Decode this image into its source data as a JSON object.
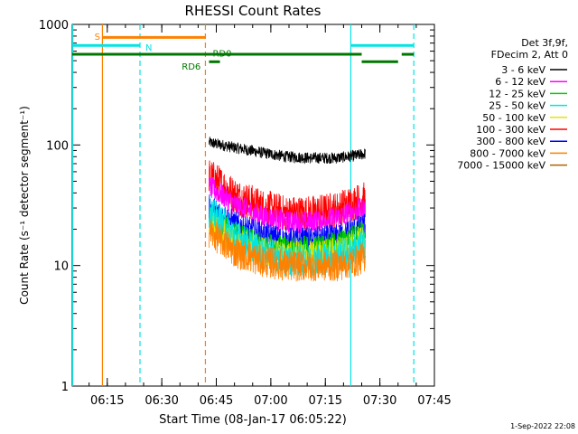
{
  "chart_data": {
    "type": "line",
    "title": "RHESSI Count Rates",
    "xlabel": "Start Time (08-Jan-17 06:05:22)",
    "ylabel": "Count Rate (s⁻¹ detector segment⁻¹)",
    "y_scale": "log",
    "ylim": [
      1,
      1000
    ],
    "xlim": [
      "06:05:22",
      "07:45:00"
    ],
    "x_ticks": [
      "06:15",
      "06:30",
      "06:45",
      "07:00",
      "07:15",
      "07:30",
      "07:45"
    ],
    "y_ticks": [
      "1",
      "10",
      "100",
      "1000"
    ],
    "legend_title": [
      "Det 3f,9f,",
      "FDecim 2, Att 0"
    ],
    "legend_position": "right",
    "data_interval": [
      "06:43:00",
      "07:26:00"
    ],
    "series": [
      {
        "name": "3 - 6 keV",
        "color": "#000000",
        "x": [
          "06:43",
          "06:50",
          "06:57",
          "07:04",
          "07:11",
          "07:18",
          "07:24",
          "07:26"
        ],
        "values": [
          105,
          95,
          87,
          80,
          78,
          78,
          82,
          85
        ]
      },
      {
        "name": "6 - 12 keV",
        "color": "#ff00ff",
        "x": [
          "06:43",
          "06:50",
          "06:57",
          "07:04",
          "07:11",
          "07:18",
          "07:24",
          "07:26"
        ],
        "values": [
          45,
          32,
          26,
          23,
          23,
          25,
          29,
          30
        ]
      },
      {
        "name": "12 - 25 keV",
        "color": "#00cc00",
        "x": [
          "06:43",
          "06:50",
          "06:57",
          "07:04",
          "07:11",
          "07:18",
          "07:24",
          "07:26"
        ],
        "values": [
          25,
          18,
          15,
          14,
          14,
          15,
          18,
          19
        ]
      },
      {
        "name": "25 - 50 keV",
        "color": "#00e5e5",
        "x": [
          "06:43",
          "06:50",
          "06:57",
          "07:04",
          "07:11",
          "07:18",
          "07:24",
          "07:26"
        ],
        "values": [
          28,
          18,
          13,
          11,
          11,
          12,
          14,
          15
        ]
      },
      {
        "name": "50 - 100 keV",
        "color": "#e5e500",
        "x": [
          "06:43",
          "06:50",
          "06:57",
          "07:04",
          "07:11",
          "07:18",
          "07:24",
          "07:26"
        ],
        "values": [
          22,
          16,
          13,
          12,
          12,
          13,
          16,
          17
        ]
      },
      {
        "name": "100 - 300 keV",
        "color": "#ff0000",
        "x": [
          "06:43",
          "06:50",
          "06:57",
          "07:04",
          "07:11",
          "07:18",
          "07:24",
          "07:26"
        ],
        "values": [
          55,
          38,
          31,
          27,
          27,
          29,
          34,
          35
        ]
      },
      {
        "name": "300 - 800 keV",
        "color": "#0000ff",
        "x": [
          "06:43",
          "06:50",
          "06:57",
          "07:04",
          "07:11",
          "07:18",
          "07:24",
          "07:26"
        ],
        "values": [
          30,
          22,
          18,
          16,
          16,
          17,
          20,
          21
        ]
      },
      {
        "name": "800 - 7000 keV",
        "color": "#ff8000",
        "x": [
          "06:43",
          "06:50",
          "06:57",
          "07:04",
          "07:11",
          "07:18",
          "07:24",
          "07:26"
        ],
        "values": [
          19,
          13,
          11,
          10,
          10,
          10,
          11,
          12
        ]
      },
      {
        "name": "7000 - 15000 keV",
        "color": "#b06000",
        "x": [],
        "values": []
      }
    ],
    "vertical_lines": [
      {
        "time": "06:05:30",
        "color": "#00e5e5",
        "style": "solid"
      },
      {
        "time": "06:13:40",
        "color": "#ff8000",
        "style": "solid"
      },
      {
        "time": "06:24:00",
        "color": "#00e5e5",
        "style": "dashed"
      },
      {
        "time": "06:42:00",
        "color": "#ff8000",
        "style": "dashed"
      },
      {
        "time": "07:22:00",
        "color": "#00e5e5",
        "style": "solid"
      },
      {
        "time": "07:39:20",
        "color": "#00e5e5",
        "style": "dashed"
      }
    ],
    "flag_bars": [
      {
        "label": "S",
        "color": "#ff8000",
        "y": 780,
        "segments": [
          [
            "06:13:40",
            "06:42:00"
          ]
        ],
        "label_time": "06:11:30",
        "label_y": 800
      },
      {
        "label": "N",
        "color": "#00e5e5",
        "y": 670,
        "segments": [
          [
            "06:05:22",
            "06:24:00"
          ],
          [
            "07:22:00",
            "07:39:20"
          ]
        ],
        "label_time": "06:25:30",
        "label_y": 650
      },
      {
        "label": "RD0",
        "color": "#007700",
        "y": 565,
        "segments": [
          [
            "06:05:22",
            "07:25:00"
          ],
          [
            "07:36:00",
            "07:39:20"
          ]
        ],
        "label_time": "06:44:00",
        "label_y": 580
      },
      {
        "label": "RD6",
        "color": "#007700",
        "y": 490,
        "segments": [
          [
            "06:43:00",
            "06:46:00"
          ],
          [
            "07:25:00",
            "07:35:00"
          ]
        ],
        "label_time": "06:35:30",
        "label_y": 450
      }
    ]
  },
  "timestamp": "1-Sep-2022 22:08"
}
